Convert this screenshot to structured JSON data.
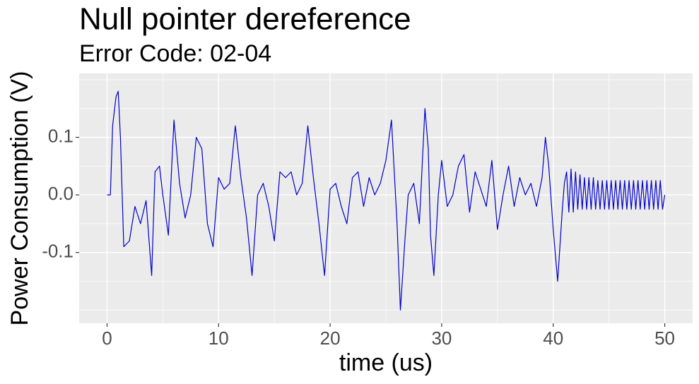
{
  "chart_data": {
    "type": "line",
    "title": "Null pointer dereference",
    "subtitle": "Error Code: 02-04",
    "x_label": "time (us)",
    "y_label": "Power Consumption (V)",
    "color": "#0000cd",
    "grid": true,
    "xlim": [
      -2.5,
      52.5
    ],
    "ylim": [
      -0.223,
      0.211
    ],
    "xticks": [
      0,
      10,
      20,
      30,
      40,
      50
    ],
    "yticks": [
      -0.1,
      {
        "value": 0,
        "label": "0.0"
      },
      0.1
    ],
    "x_minor_grid": [
      5,
      15,
      25,
      35,
      45
    ],
    "y_minor_grid": [
      -0.2,
      -0.15,
      -0.05,
      0.05,
      0.15,
      0.2
    ],
    "x": [
      0,
      0.3,
      0.5,
      0.8,
      1,
      1.2,
      1.5,
      2,
      2.5,
      3,
      3.5,
      4,
      4.3,
      4.7,
      5,
      5.5,
      6,
      6.5,
      7,
      7.5,
      8,
      8.5,
      9,
      9.5,
      10,
      10.5,
      11,
      11.5,
      12,
      12.5,
      13,
      13.5,
      14,
      14.5,
      15,
      15.5,
      16,
      16.5,
      17,
      17.5,
      18,
      18.5,
      19,
      19.5,
      20,
      20.5,
      21,
      21.5,
      22,
      22.5,
      23,
      23.5,
      24,
      24.5,
      25,
      25.5,
      26,
      26.3,
      26.7,
      27,
      27.5,
      28,
      28.5,
      28.8,
      29,
      29.3,
      29.7,
      30,
      30.5,
      31,
      31.5,
      32,
      32.5,
      33,
      33.5,
      34,
      34.5,
      35,
      35.5,
      36,
      36.5,
      37,
      37.5,
      38,
      38.5,
      39,
      39.3,
      39.6,
      40,
      40.4,
      40.8,
      41,
      41.2,
      41.4,
      41.6,
      41.8,
      42,
      42.2,
      42.4,
      42.6,
      42.8,
      43,
      43.2,
      43.4,
      43.6,
      43.8,
      44,
      44.2,
      44.4,
      44.6,
      44.8,
      45,
      45.2,
      45.4,
      45.6,
      45.8,
      46,
      46.2,
      46.4,
      46.6,
      46.8,
      47,
      47.2,
      47.4,
      47.6,
      47.8,
      48,
      48.2,
      48.4,
      48.6,
      48.8,
      49,
      49.2,
      49.4,
      49.6,
      49.8,
      50
    ],
    "values": [
      0,
      0,
      0.12,
      0.17,
      0.18,
      0.1,
      -0.09,
      -0.08,
      -0.02,
      -0.05,
      -0.01,
      -0.14,
      0.04,
      0.05,
      0,
      -0.07,
      0.13,
      0.02,
      -0.04,
      0,
      0.1,
      0.08,
      -0.05,
      -0.09,
      0.03,
      0.01,
      0.02,
      0.12,
      0.03,
      -0.04,
      -0.14,
      0,
      0.02,
      -0.02,
      -0.08,
      0.04,
      0.03,
      0.04,
      0,
      0.02,
      0.12,
      0.03,
      -0.05,
      -0.14,
      0.01,
      0.02,
      -0.02,
      -0.05,
      0.03,
      0.04,
      -0.02,
      0.03,
      0,
      0.02,
      0.06,
      0.13,
      -0.05,
      -0.2,
      -0.08,
      0,
      0.02,
      -0.05,
      0.15,
      0.08,
      -0.07,
      -0.14,
      0,
      0.06,
      -0.02,
      0,
      0.05,
      0.07,
      -0.03,
      0.04,
      0.01,
      -0.02,
      0.06,
      -0.06,
      0,
      0.05,
      -0.02,
      0.03,
      0,
      0.02,
      -0.02,
      0.03,
      0.1,
      0.05,
      -0.06,
      -0.15,
      -0.03,
      0.02,
      0.04,
      -0.03,
      0.045,
      -0.03,
      0.04,
      -0.025,
      0.035,
      -0.025,
      0.03,
      -0.025,
      0.03,
      -0.025,
      0.03,
      -0.025,
      0.025,
      -0.025,
      0.025,
      -0.025,
      0.025,
      -0.025,
      0.025,
      -0.025,
      0.025,
      -0.025,
      0.025,
      -0.025,
      0.025,
      -0.025,
      0.025,
      -0.025,
      0.025,
      -0.025,
      0.025,
      -0.025,
      0.025,
      -0.025,
      0.025,
      -0.025,
      0.025,
      -0.025,
      0.025,
      -0.025,
      0.025,
      -0.025,
      0
    ]
  }
}
